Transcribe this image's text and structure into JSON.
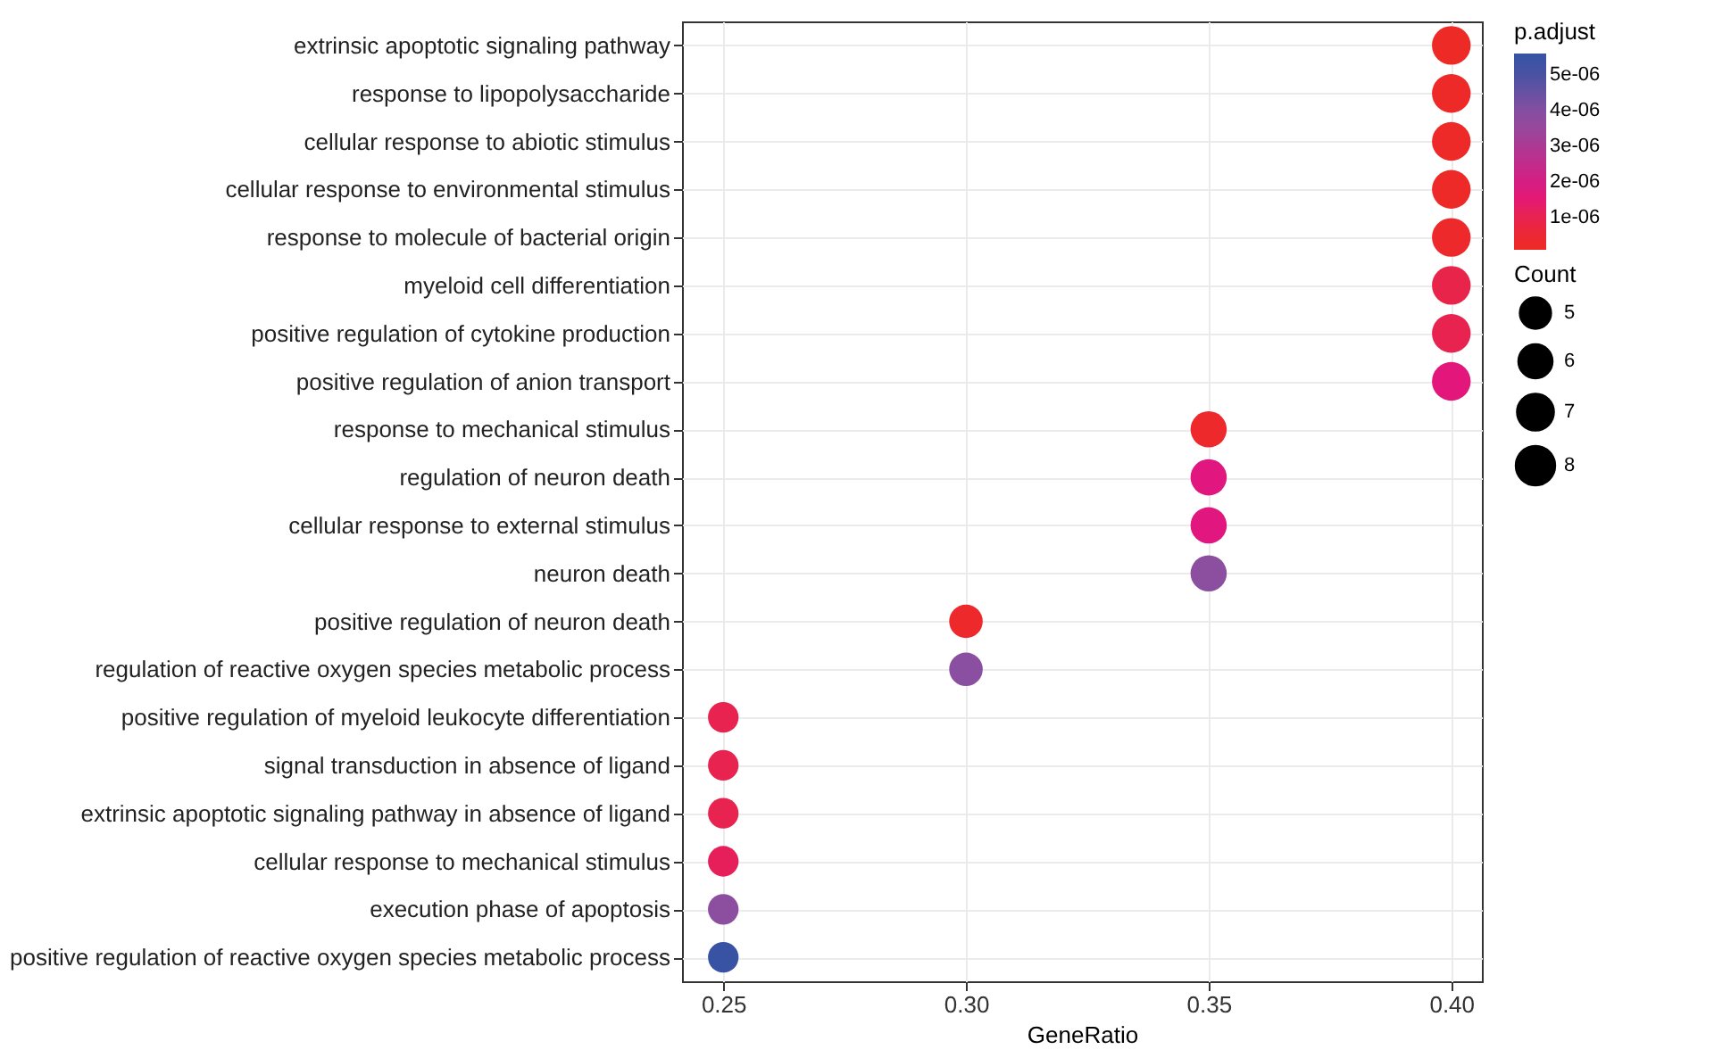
{
  "chart_data": {
    "type": "bubble",
    "orientation": "horizontal",
    "xlabel": "GeneRatio",
    "legend_title": "Count",
    "clabel": "p.adjust",
    "categories": [
      "extrinsic apoptotic signaling pathway",
      "response to lipopolysaccharide",
      "cellular response to abiotic stimulus",
      "cellular response to environmental stimulus",
      "response to molecule of bacterial origin",
      "myeloid cell differentiation",
      "positive regulation of cytokine production",
      "positive regulation of anion transport",
      "response to mechanical stimulus",
      "regulation of neuron death",
      "cellular response to external stimulus",
      "neuron death",
      "positive regulation of neuron death",
      "regulation of reactive oxygen species metabolic process",
      "positive regulation of myeloid leukocyte differentiation",
      "signal transduction in absence of ligand",
      "extrinsic apoptotic signaling pathway in absence of ligand",
      "cellular response to mechanical stimulus",
      "execution phase of apoptosis",
      "positive regulation of reactive oxygen species metabolic process"
    ],
    "values": [
      0.4,
      0.4,
      0.4,
      0.4,
      0.4,
      0.4,
      0.4,
      0.4,
      0.35,
      0.35,
      0.35,
      0.35,
      0.3,
      0.3,
      0.25,
      0.25,
      0.25,
      0.25,
      0.25,
      0.25
    ],
    "sizes": [
      8,
      8,
      8,
      8,
      8,
      8,
      8,
      8,
      7,
      7,
      7,
      7,
      6,
      6,
      5,
      5,
      5,
      5,
      5,
      5
    ],
    "size_legend": [
      5,
      6,
      7,
      8
    ],
    "cvalues": [
      2e-07,
      3e-07,
      3e-07,
      3e-07,
      4e-07,
      8e-07,
      9e-07,
      1.6e-06,
      4e-07,
      1.7e-06,
      1.7e-06,
      3.8e-06,
      4e-07,
      3.9e-06,
      1e-06,
      1e-06,
      1e-06,
      1.2e-06,
      3.8e-06,
      5.3e-06
    ],
    "clim": [
      1e-07,
      5.6e-06
    ],
    "cticks": [
      {
        "value": 1e-06,
        "label": "1e-06"
      },
      {
        "value": 2e-06,
        "label": "2e-06"
      },
      {
        "value": 3e-06,
        "label": "3e-06"
      },
      {
        "value": 4e-06,
        "label": "4e-06"
      },
      {
        "value": 5e-06,
        "label": "5e-06"
      }
    ],
    "colors": [
      "#ee2a26",
      "#ee2a28",
      "#ee2a28",
      "#ee2a28",
      "#ed292b",
      "#e9244a",
      "#e82350",
      "#e3177b",
      "#ed292b",
      "#e1167e",
      "#e1167e",
      "#8c4fa0",
      "#ed292b",
      "#8a4fa1",
      "#e8234f",
      "#e8234f",
      "#e8234f",
      "#e61f5b",
      "#8c4fa0",
      "#3953a4"
    ],
    "xlim": [
      0.2415,
      0.4063
    ],
    "xticks": [
      {
        "value": 0.25,
        "label": "0.25"
      },
      {
        "value": 0.3,
        "label": "0.30"
      },
      {
        "value": 0.35,
        "label": "0.35"
      },
      {
        "value": 0.4,
        "label": "0.40"
      }
    ],
    "grid": true
  }
}
